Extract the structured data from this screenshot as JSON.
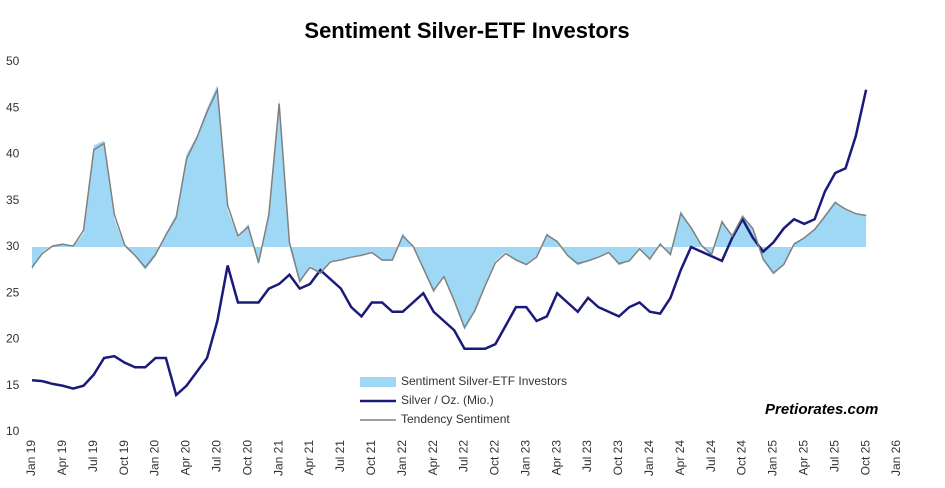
{
  "chart_data": {
    "type": "line",
    "title": "Sentiment Silver-ETF Investors",
    "annotation": "Pretiorates.com",
    "categories": [
      "Jan 19",
      null,
      null,
      "Apr 19",
      null,
      null,
      "Jul 19",
      null,
      null,
      "Oct 19",
      null,
      null,
      "Jan 20",
      null,
      null,
      "Apr 20",
      null,
      null,
      "Jul 20",
      null,
      null,
      "Oct 20",
      null,
      null,
      "Jan 21",
      null,
      null,
      "Apr 21",
      null,
      null,
      "Jul 21",
      null,
      null,
      "Oct 21",
      null,
      null,
      "Jan 22",
      null,
      null,
      "Apr 22",
      null,
      null,
      "Jul 22",
      null,
      null,
      "Oct 22",
      null,
      null,
      "Jan 23",
      null,
      null,
      "Apr 23",
      null,
      null,
      "Jul 23",
      null,
      null,
      "Oct 23",
      null,
      null,
      "Jan 24",
      null,
      null,
      "Apr 24",
      null,
      null,
      "Jul 24",
      null,
      null,
      "Oct 24",
      null,
      null,
      "Jan 25",
      null,
      null,
      "Apr 25",
      null,
      null,
      "Jul 25",
      null,
      null,
      "Oct 25",
      null,
      null,
      "Jan 26"
    ],
    "ylim": [
      10,
      50
    ],
    "yticks": [
      10,
      15,
      20,
      25,
      30,
      35,
      40,
      45,
      50
    ],
    "baseline": 30,
    "legend": "bottom-center",
    "series": [
      {
        "name": "Sentiment Silver-ETF Investors",
        "color": "#9fd8f5",
        "style": "area",
        "values": [
          27.5,
          29.5,
          30.2,
          30.4,
          30,
          31.5,
          41,
          41.5,
          33,
          30,
          29,
          27.5,
          29,
          31.5,
          33.5,
          40,
          42,
          45,
          47.5,
          34,
          31,
          32.5,
          28,
          34,
          46,
          30,
          26,
          28,
          27,
          28.5,
          28.5,
          29,
          29,
          29.5,
          28.5,
          28.5,
          31.5,
          30,
          27.5,
          25,
          27,
          24,
          21,
          23,
          26,
          28.5,
          29.5,
          28.5,
          28,
          29,
          31.5,
          30.5,
          29,
          28,
          28.5,
          29,
          29.5,
          28,
          28.5,
          30,
          28.5,
          30.5,
          29,
          34,
          32,
          30,
          29,
          33,
          31,
          33.5,
          32,
          28.5,
          27,
          28,
          30.5,
          31,
          32,
          33.5,
          35,
          34,
          33.5,
          33.5,
          null,
          null,
          null
        ]
      },
      {
        "name": "Silver / Oz. (Mio.)",
        "color": "#1a1a7a",
        "style": "line",
        "values": [
          15.6,
          15.5,
          15.2,
          15,
          14.7,
          15,
          16.2,
          18,
          18.2,
          17.5,
          17,
          17,
          18,
          18,
          14,
          15,
          16.5,
          18,
          22,
          28,
          24,
          24,
          24,
          25.5,
          26,
          27,
          25.5,
          26,
          27.5,
          26.5,
          25.5,
          23.5,
          22.5,
          24,
          24,
          23,
          23,
          24,
          25,
          23,
          22,
          21,
          19,
          19,
          19,
          19.5,
          21.5,
          23.5,
          23.5,
          22,
          22.5,
          25,
          24,
          23,
          24.5,
          23.5,
          23,
          22.5,
          23.5,
          24,
          23,
          22.8,
          24.5,
          27.5,
          30,
          29.5,
          29,
          28.5,
          31,
          33,
          31,
          29.5,
          30.5,
          32,
          33,
          32.5,
          33,
          36,
          38,
          38.5,
          42,
          47,
          null,
          null,
          null
        ]
      },
      {
        "name": "Tendency Sentiment",
        "color": "#808080",
        "style": "line",
        "values": [
          27.8,
          29.3,
          30.1,
          30.3,
          30.1,
          31.8,
          40.5,
          41.2,
          33.5,
          30.2,
          29.1,
          27.8,
          29.2,
          31.3,
          33.2,
          39.5,
          41.8,
          44.6,
          47,
          34.5,
          31.2,
          32.2,
          28.3,
          33.5,
          45.5,
          30.5,
          26.3,
          27.8,
          27.2,
          28.4,
          28.6,
          28.9,
          29.1,
          29.4,
          28.6,
          28.6,
          31.2,
          30.1,
          27.7,
          25.3,
          26.8,
          24.2,
          21.3,
          23.1,
          25.8,
          28.3,
          29.3,
          28.6,
          28.1,
          28.9,
          31.3,
          30.6,
          29.1,
          28.2,
          28.5,
          28.9,
          29.4,
          28.2,
          28.5,
          29.8,
          28.7,
          30.3,
          29.2,
          33.6,
          32.1,
          30.2,
          29.2,
          32.7,
          31.2,
          33.3,
          32,
          28.7,
          27.2,
          28.1,
          30.3,
          31,
          31.9,
          33.3,
          34.8,
          34.1,
          33.6,
          33.4,
          null,
          null,
          null
        ]
      }
    ]
  }
}
